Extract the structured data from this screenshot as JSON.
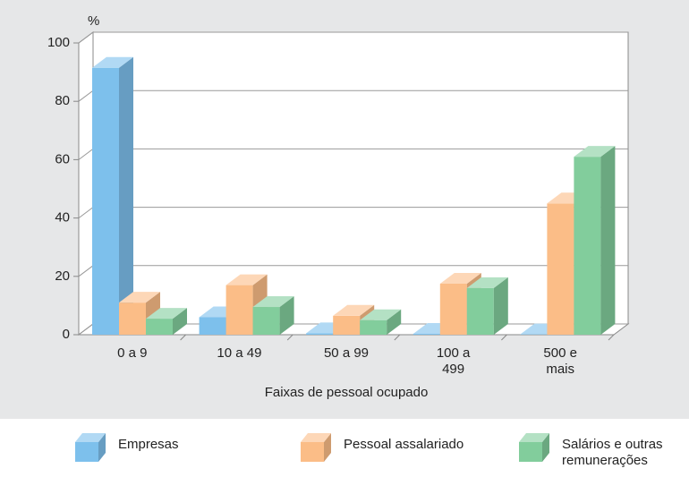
{
  "chart_data": {
    "type": "bar3d",
    "y_axis_label": "%",
    "x_axis_label": "Faixas de pessoal ocupado",
    "categories": [
      "0  a  9",
      "10 a 49",
      "50 a 99",
      "100 a 499",
      "500 e mais"
    ],
    "series": [
      {
        "name": "Empresas",
        "color": "#7dc0ec",
        "values": [
          91.5,
          6,
          0.5,
          0.3,
          0.1
        ]
      },
      {
        "name": "Pessoal assalariado",
        "color": "#fbbd87",
        "values": [
          11,
          17,
          6.5,
          17.5,
          45
        ]
      },
      {
        "name": "Salários e outras remunerações",
        "color": "#82cd9c",
        "values": [
          5.5,
          9.5,
          5,
          16,
          61
        ]
      }
    ],
    "ylim": [
      0,
      100
    ],
    "yticks": [
      0,
      20,
      40,
      60,
      80,
      100
    ],
    "grid": true
  }
}
